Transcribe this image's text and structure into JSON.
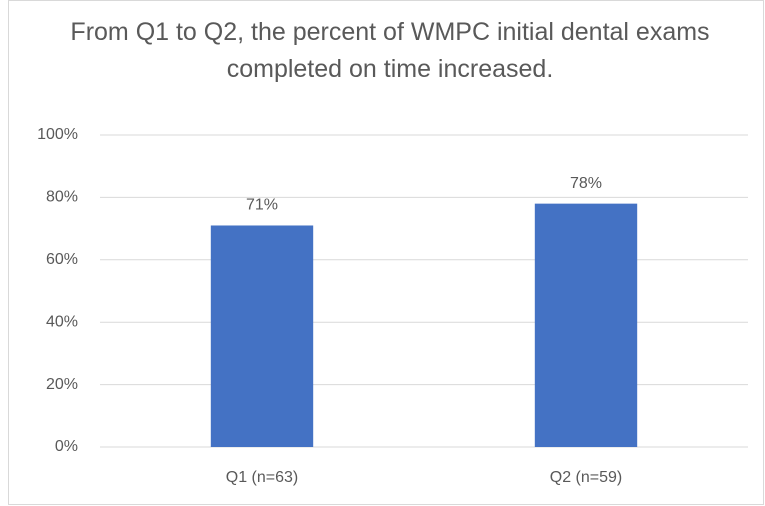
{
  "chart_data": {
    "type": "bar",
    "title": "From Q1 to Q2, the percent of WMPC initial dental exams completed on time increased.",
    "categories": [
      "Q1 (n=63)",
      "Q2 (n=59)"
    ],
    "values": [
      71,
      78
    ],
    "value_labels": [
      "71%",
      "78%"
    ],
    "color": "#4472c4",
    "ylim": [
      0,
      100
    ],
    "yticks": [
      {
        "value": 0,
        "label": "0%"
      },
      {
        "value": 20,
        "label": "20%"
      },
      {
        "value": 40,
        "label": "40%"
      },
      {
        "value": 60,
        "label": "60%"
      },
      {
        "value": 80,
        "label": "80%"
      },
      {
        "value": 100,
        "label": "100%"
      }
    ],
    "grid": true
  }
}
